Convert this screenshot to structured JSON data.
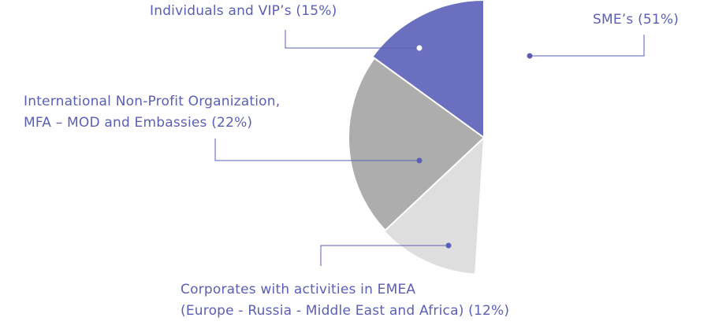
{
  "chart_data": {
    "type": "pie",
    "title": "",
    "slices": [
      {
        "key": "individuals",
        "label_lines": [
          "Individuals and VIP’s  (15%)"
        ],
        "value": 15,
        "color": "#6a6fc0",
        "marker_color": "#ffffff"
      },
      {
        "key": "intl",
        "label_lines": [
          "International Non-Profit Organization,",
          "MFA – MOD and Embassies (22%)"
        ],
        "value": 22,
        "color": "#adadad",
        "marker_color": "#5a5fb5"
      },
      {
        "key": "corp",
        "label_lines": [
          "Corporates with activities in EMEA",
          "(Europe - Russia - Middle East and Africa) (12%)"
        ],
        "value": 12,
        "color": "#dddedd",
        "marker_color": "#5a5fb5"
      },
      {
        "key": "sme",
        "label_lines": [
          "SME’s (51%)"
        ],
        "value": 51,
        "color": "#ffffff",
        "marker_color": "#5a5fb5"
      }
    ],
    "legend": "callout-labels",
    "leader_line_color": "#5a5fb5"
  }
}
